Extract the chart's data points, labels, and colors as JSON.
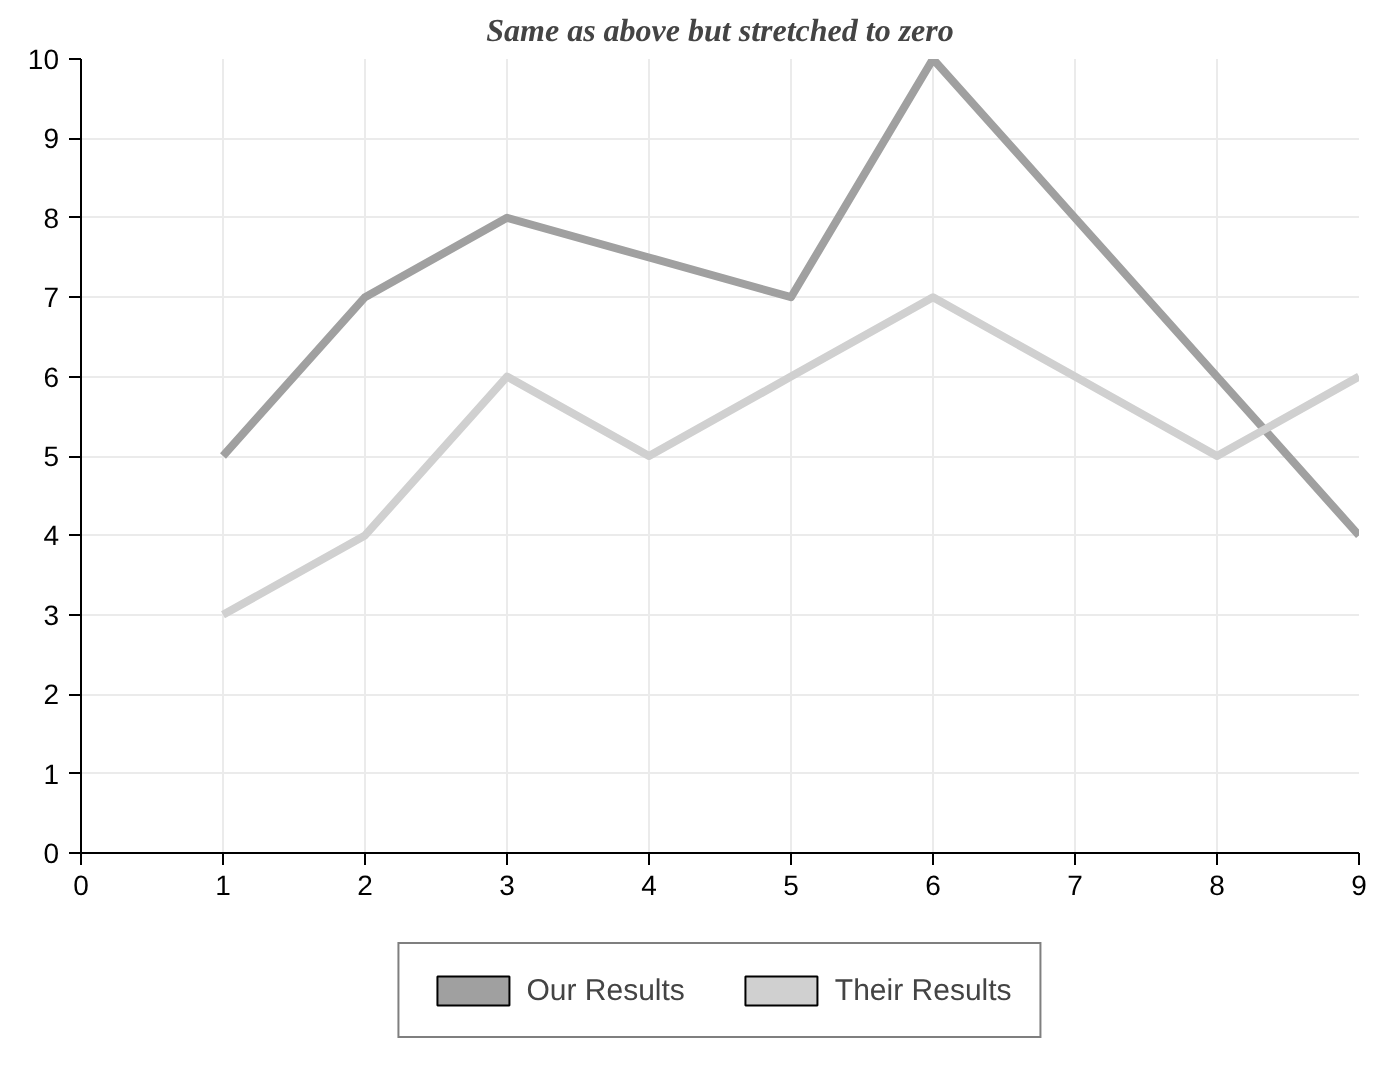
{
  "chart_data": {
    "type": "line",
    "title": "Same as above but stretched to zero",
    "x": [
      1,
      2,
      3,
      4,
      5,
      6,
      7,
      8,
      9
    ],
    "series": [
      {
        "name": "Our Results",
        "color": "#a0a0a0",
        "values": [
          5,
          7,
          8,
          7.5,
          7,
          10,
          8,
          6,
          4
        ]
      },
      {
        "name": "Their Results",
        "color": "#d0d0d0",
        "values": [
          3,
          4,
          6,
          5,
          6,
          7,
          6,
          5,
          6
        ]
      }
    ],
    "xlim": [
      0,
      9
    ],
    "ylim": [
      0,
      10
    ],
    "xticks": [
      0,
      1,
      2,
      3,
      4,
      5,
      6,
      7,
      8,
      9
    ],
    "yticks": [
      0,
      1,
      2,
      3,
      4,
      5,
      6,
      7,
      8,
      9,
      10
    ],
    "grid": true,
    "legend": "bottom",
    "line_style": "solid",
    "marker": "none"
  }
}
